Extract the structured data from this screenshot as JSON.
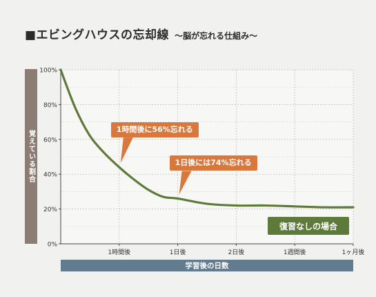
{
  "title": "■エビングハウスの忘却線",
  "subtitle": "～脳が忘れる仕組み～",
  "colors": {
    "background": "#f1f1ef",
    "curve": "#5e7a3a",
    "callout": "#d9783c",
    "ylabel_bg": "#8b7d74",
    "xlabel_bg": "#627b8e",
    "grid": "#b8b8b8"
  },
  "chart_data": {
    "type": "line",
    "title": "■エビングハウスの忘却線",
    "subtitle": "～脳が忘れる仕組み～",
    "xlabel": "学習後の日数",
    "ylabel": "覚えている割合",
    "categories": [
      "",
      "1時間後",
      "1日後",
      "2日後",
      "1週間後",
      "1ヶ月後"
    ],
    "ylim": [
      0,
      100
    ],
    "yticks": [
      "0%",
      "20%",
      "40%",
      "60%",
      "80%",
      "100%"
    ],
    "ytick_values": [
      0,
      20,
      40,
      60,
      80,
      100
    ],
    "grid": true,
    "legend": "bottom-right",
    "series": [
      {
        "name": "復習なしの場合",
        "x": [
          0,
          0.25,
          0.5,
          0.75,
          1,
          1.25,
          1.5,
          1.75,
          2,
          2.5,
          3,
          3.5,
          4,
          4.5,
          5
        ],
        "values": [
          100,
          78,
          62,
          52,
          44,
          37,
          31,
          27,
          26,
          23,
          22,
          22,
          21.5,
          21,
          21
        ]
      }
    ],
    "annotations": [
      {
        "text": "1時間後に56%忘れる",
        "x": 1,
        "y": 44
      },
      {
        "text": "1日後には74%忘れる",
        "x": 2,
        "y": 26
      }
    ]
  }
}
